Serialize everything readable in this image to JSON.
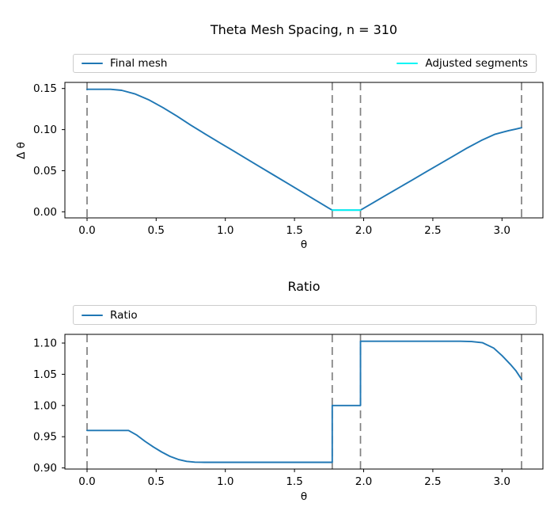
{
  "figure": {
    "background": "#ffffff",
    "axis_color": "#000000",
    "guide_gray": "#808080",
    "legend_border": "#cccccc",
    "accent_blue": "#1f77b4",
    "accent_cyan": "#00f5f5"
  },
  "chart_data": [
    {
      "type": "line",
      "title": "Theta Mesh Spacing, n = 310",
      "xlabel": "θ",
      "ylabel": "Δ θ",
      "grid": false,
      "legend_position": "expanded strip above axes",
      "xlim": [
        -0.16,
        3.296
      ],
      "ylim": [
        -0.0074,
        0.1574
      ],
      "xtick_values": [
        0,
        0.5,
        1.0,
        1.5,
        2.0,
        2.5,
        3.0
      ],
      "xtick_labels": [
        "0.0",
        "0.5",
        "1.0",
        "1.5",
        "2.0",
        "2.5",
        "3.0"
      ],
      "ytick_values": [
        0.0,
        0.05,
        0.1,
        0.15
      ],
      "ytick_labels": [
        "0.00",
        "0.05",
        "0.10",
        "0.15"
      ],
      "vlines": [
        0,
        1.773,
        1.977,
        3.1416
      ],
      "legend": [
        {
          "label": "Final mesh",
          "color": "#1f77b4"
        },
        {
          "label": "Adjusted segments",
          "color": "#00f5f5"
        }
      ],
      "series": [
        {
          "name": "Final mesh",
          "color": "#1f77b4",
          "points": [
            [
              0,
              0.149
            ],
            [
              0.17,
              0.149
            ],
            [
              0.25,
              0.1478
            ],
            [
              0.35,
              0.1432
            ],
            [
              0.45,
              0.1359
            ],
            [
              0.55,
              0.1267
            ],
            [
              0.65,
              0.1163
            ],
            [
              0.75,
              0.1055
            ],
            [
              0.85,
              0.095
            ],
            [
              0.97,
              0.0829
            ],
            [
              1.05,
              0.0749
            ],
            [
              1.15,
              0.0648
            ],
            [
              1.25,
              0.0547
            ],
            [
              1.35,
              0.0446
            ],
            [
              1.45,
              0.0346
            ],
            [
              1.55,
              0.0245
            ],
            [
              1.65,
              0.0144
            ],
            [
              1.75,
              0.0043
            ],
            [
              1.773,
              0.002
            ],
            [
              1.977,
              0.002
            ],
            [
              2.05,
              0.0092
            ],
            [
              2.15,
              0.019
            ],
            [
              2.25,
              0.0288
            ],
            [
              2.35,
              0.0386
            ],
            [
              2.45,
              0.0484
            ],
            [
              2.55,
              0.0582
            ],
            [
              2.65,
              0.068
            ],
            [
              2.75,
              0.0778
            ],
            [
              2.85,
              0.0868
            ],
            [
              2.95,
              0.0944
            ],
            [
              3.05,
              0.0988
            ],
            [
              3.1,
              0.1006
            ],
            [
              3.1416,
              0.1023
            ]
          ]
        },
        {
          "name": "Adjusted segments",
          "color": "#00f5f5",
          "points": [
            [
              1.773,
              0.002
            ],
            [
              1.977,
              0.002
            ]
          ]
        }
      ]
    },
    {
      "type": "line",
      "title": "Ratio",
      "xlabel": "θ",
      "ylabel": "",
      "grid": false,
      "legend_position": "expanded strip above axes",
      "xlim": [
        -0.16,
        3.296
      ],
      "ylim": [
        0.8982,
        1.114
      ],
      "xtick_values": [
        0,
        0.5,
        1.0,
        1.5,
        2.0,
        2.5,
        3.0
      ],
      "xtick_labels": [
        "0.0",
        "0.5",
        "1.0",
        "1.5",
        "2.0",
        "2.5",
        "3.0"
      ],
      "ytick_values": [
        0.9,
        0.95,
        1.0,
        1.05,
        1.1
      ],
      "ytick_labels": [
        "0.90",
        "0.95",
        "1.00",
        "1.05",
        "1.10"
      ],
      "vlines": [
        0,
        1.773,
        1.977,
        3.1416
      ],
      "legend": [
        {
          "label": "Ratio",
          "color": "#1f77b4"
        }
      ],
      "series": [
        {
          "name": "Ratio",
          "color": "#1f77b4",
          "points": [
            [
              0,
              0.96
            ],
            [
              0.3,
              0.96
            ],
            [
              0.36,
              0.9525
            ],
            [
              0.42,
              0.9425
            ],
            [
              0.48,
              0.9335
            ],
            [
              0.54,
              0.9255
            ],
            [
              0.6,
              0.9185
            ],
            [
              0.66,
              0.9135
            ],
            [
              0.72,
              0.9105
            ],
            [
              0.78,
              0.9093
            ],
            [
              0.85,
              0.909
            ],
            [
              1.773,
              0.909
            ],
            [
              1.773,
              1.0
            ],
            [
              1.977,
              1.0
            ],
            [
              1.977,
              1.103
            ],
            [
              2.7,
              1.103
            ],
            [
              2.78,
              1.1025
            ],
            [
              2.86,
              1.1005
            ],
            [
              2.94,
              1.092
            ],
            [
              3.0,
              1.08
            ],
            [
              3.06,
              1.066
            ],
            [
              3.1,
              1.056
            ],
            [
              3.1416,
              1.042
            ]
          ]
        }
      ]
    }
  ]
}
